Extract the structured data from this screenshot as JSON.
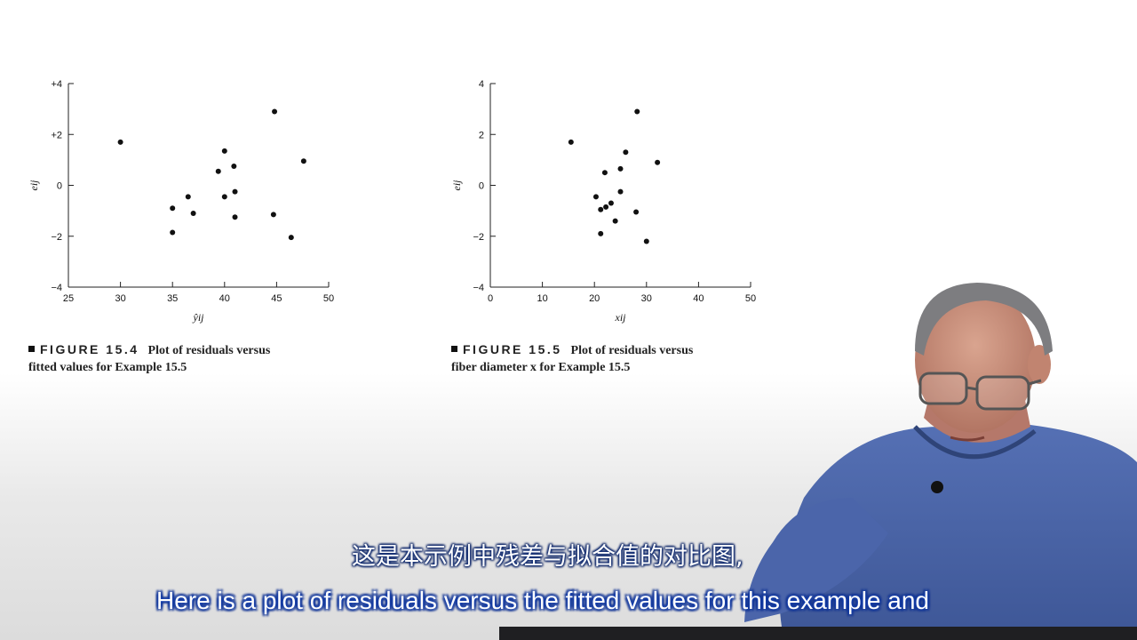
{
  "chart_data": [
    {
      "type": "scatter",
      "figure_number": "FIGURE 15.4",
      "caption": "Plot of residuals versus",
      "caption_line2": "fitted values for Example 15.5",
      "xlabel": "ŷij",
      "ylabel": "eij",
      "xlim": [
        25,
        50
      ],
      "ylim": [
        -4,
        4
      ],
      "x_ticks": [
        "25",
        "30",
        "35",
        "40",
        "45",
        "50"
      ],
      "y_ticks": [
        "−4",
        "−2",
        "0",
        "+2",
        "+4"
      ],
      "x": [
        30.0,
        35.0,
        35.0,
        36.5,
        37.0,
        39.4,
        40.0,
        40.0,
        40.9,
        41.0,
        41.0,
        44.7,
        44.8,
        46.4,
        47.6
      ],
      "y": [
        1.7,
        -0.9,
        -1.85,
        -0.45,
        -1.1,
        0.55,
        1.35,
        -0.45,
        0.75,
        -0.25,
        -1.25,
        -1.15,
        2.9,
        -2.05,
        0.95
      ]
    },
    {
      "type": "scatter",
      "figure_number": "FIGURE 15.5",
      "caption": "Plot of residuals versus",
      "caption_line2": "fiber diameter x for Example 15.5",
      "xlabel": "xij",
      "ylabel": "eij",
      "xlim": [
        0,
        50
      ],
      "ylim": [
        -4,
        4
      ],
      "x_ticks": [
        "0",
        "10",
        "20",
        "30",
        "40",
        "50"
      ],
      "y_ticks": [
        "−4",
        "−2",
        "0",
        "2",
        "4"
      ],
      "x": [
        15.5,
        20.3,
        21.2,
        21.2,
        22.0,
        22.2,
        23.2,
        24.0,
        25.0,
        25.0,
        26.0,
        28.0,
        28.2,
        30.0,
        32.1
      ],
      "y": [
        1.7,
        -0.45,
        -0.95,
        -1.9,
        0.5,
        -0.85,
        -0.7,
        -1.4,
        0.65,
        -0.25,
        1.3,
        -1.05,
        2.9,
        -2.2,
        0.9
      ]
    }
  ],
  "subtitles": {
    "chinese": "这是本示例中残差与拟合值的对比图,",
    "english": "Here is a plot of residuals versus the fitted values for this example and"
  },
  "colors": {
    "subtitle_outline": "#0f2f8a",
    "shirt": "#4a63a8"
  }
}
